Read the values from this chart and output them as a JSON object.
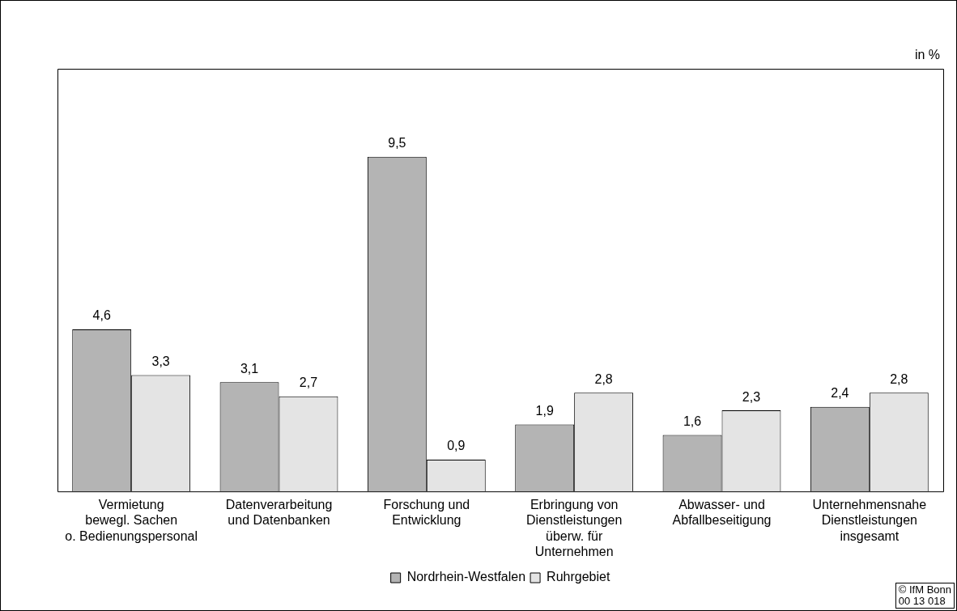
{
  "chart_data": {
    "type": "bar",
    "categories": [
      "Vermietung\nbewegl. Sachen\no. Bedienungspersonal",
      "Datenverarbeitung\nund Datenbanken",
      "Forschung und\nEntwicklung",
      "Erbringung von\nDienstleistungen\nüberw. für\nUnternehmen",
      "Abwasser- und\nAbfallbeseitigung",
      "Unternehmensnahe\nDienstleistungen\ninsgesamt"
    ],
    "series": [
      {
        "name": "Nordrhein-Westfalen",
        "color": "#b4b4b4",
        "values": [
          4.6,
          3.1,
          9.5,
          1.9,
          1.6,
          2.4
        ],
        "value_labels": [
          "4,6",
          "3,1",
          "9,5",
          "1,9",
          "1,6",
          "2,4"
        ]
      },
      {
        "name": "Ruhrgebiet",
        "color": "#e4e4e4",
        "values": [
          3.3,
          2.7,
          0.9,
          2.8,
          2.3,
          2.8
        ],
        "value_labels": [
          "3,3",
          "2,7",
          "0,9",
          "2,8",
          "2,3",
          "2,8"
        ]
      }
    ],
    "legend": "bottom",
    "annotations": [
      "in %",
      "© IfM Bonn",
      "00 13 018"
    ]
  }
}
